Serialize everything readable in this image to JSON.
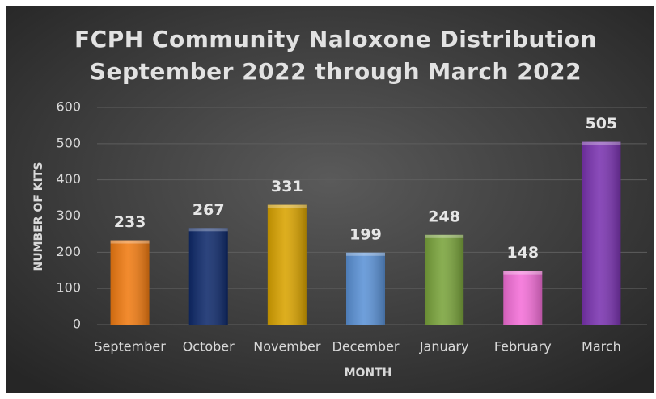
{
  "chart_data": {
    "type": "bar",
    "title": [
      "FCPH Community Naloxone Distribution",
      "September 2022 through March 2022"
    ],
    "x_label": "MONTH",
    "y_label": "NUMBER OF KITS",
    "categories": [
      "September",
      "October",
      "November",
      "December",
      "January",
      "February",
      "March"
    ],
    "values": [
      233,
      267,
      331,
      199,
      248,
      148,
      505
    ],
    "colors": [
      "#f07b12",
      "#0f2a6b",
      "#d9a300",
      "#5b92d6",
      "#79a33b",
      "#f46fd8",
      "#7a33b0"
    ],
    "ylim": [
      0,
      600
    ],
    "yticks": [
      0,
      100,
      200,
      300,
      400,
      500,
      600
    ],
    "grid": true
  }
}
